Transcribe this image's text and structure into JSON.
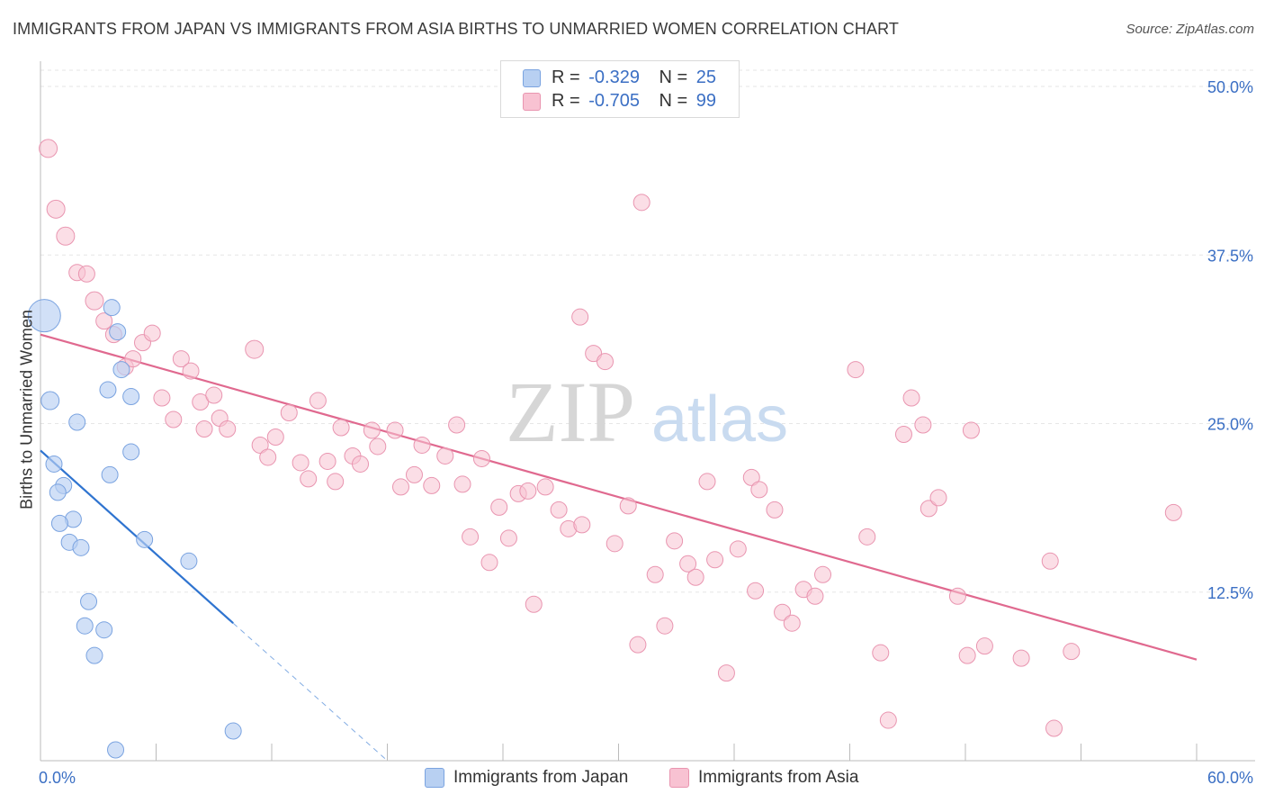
{
  "header": {
    "title": "IMMIGRANTS FROM JAPAN VS IMMIGRANTS FROM ASIA BIRTHS TO UNMARRIED WOMEN CORRELATION CHART",
    "source": "Source: ZipAtlas.com"
  },
  "watermark": {
    "zip": "ZIP",
    "atlas": "atlas"
  },
  "legend": {
    "japan": {
      "r_label": "R =",
      "r_value": "-0.329",
      "n_label": "N =",
      "n_value": "25"
    },
    "asia": {
      "r_label": "R =",
      "r_value": "-0.705",
      "n_label": "N =",
      "n_value": "99"
    }
  },
  "colors": {
    "japan_fill": "#b8d0f2",
    "japan_stroke": "#7aa3e0",
    "japan_line": "#2f74d0",
    "asia_fill": "#f8c2d2",
    "asia_stroke": "#e995b0",
    "asia_line": "#e0698f",
    "tick_label": "#3b6fc4",
    "grid": "#e6e6e6"
  },
  "chart_data": {
    "type": "scatter",
    "title": "IMMIGRANTS FROM JAPAN VS IMMIGRANTS FROM ASIA BIRTHS TO UNMARRIED WOMEN CORRELATION CHART",
    "xlabel": "",
    "ylabel": "Births to Unmarried Women",
    "xlim": [
      0,
      60
    ],
    "ylim": [
      0,
      50
    ],
    "x_tick_labels": [
      "0.0%",
      "60.0%"
    ],
    "y_ticks": [
      12.5,
      25.0,
      37.5,
      50.0
    ],
    "y_tick_labels": [
      "12.5%",
      "25.0%",
      "37.5%",
      "50.0%"
    ],
    "grid": true,
    "legend_position": "top-center",
    "series": [
      {
        "name": "Immigrants from Japan",
        "r": -0.329,
        "n": 25,
        "points": [
          [
            0.2,
            33.0,
            18
          ],
          [
            0.5,
            26.7,
            10
          ],
          [
            1.9,
            25.1,
            9
          ],
          [
            0.7,
            22.0,
            9
          ],
          [
            1.2,
            20.4,
            9
          ],
          [
            0.9,
            19.9,
            9
          ],
          [
            3.6,
            21.2,
            9
          ],
          [
            1.7,
            17.9,
            9
          ],
          [
            1.0,
            17.6,
            9
          ],
          [
            1.5,
            16.2,
            9
          ],
          [
            2.1,
            15.8,
            9
          ],
          [
            3.7,
            33.6,
            9
          ],
          [
            4.0,
            31.8,
            9
          ],
          [
            4.2,
            29.0,
            9
          ],
          [
            3.5,
            27.5,
            9
          ],
          [
            4.7,
            27.0,
            9
          ],
          [
            4.7,
            22.9,
            9
          ],
          [
            5.4,
            16.4,
            9
          ],
          [
            7.7,
            14.8,
            9
          ],
          [
            2.5,
            11.8,
            9
          ],
          [
            2.3,
            10.0,
            9
          ],
          [
            3.3,
            9.7,
            9
          ],
          [
            2.8,
            7.8,
            9
          ],
          [
            10.0,
            2.2,
            9
          ],
          [
            3.9,
            0.8,
            9
          ]
        ],
        "trend": {
          "x0": 0,
          "y0": 23.0,
          "x1": 10.0,
          "y1": 10.2,
          "dash_to_x": 18.0,
          "dash_to_y": 0.0
        }
      },
      {
        "name": "Immigrants from Asia",
        "r": -0.705,
        "n": 99,
        "points": [
          [
            0.4,
            45.4,
            10
          ],
          [
            0.8,
            40.9,
            10
          ],
          [
            1.3,
            38.9,
            10
          ],
          [
            1.9,
            36.2,
            9
          ],
          [
            2.4,
            36.1,
            9
          ],
          [
            2.8,
            34.1,
            10
          ],
          [
            3.3,
            32.6,
            9
          ],
          [
            3.8,
            31.6,
            9
          ],
          [
            5.3,
            31.0,
            9
          ],
          [
            5.8,
            31.7,
            9
          ],
          [
            4.4,
            29.2,
            9
          ],
          [
            4.8,
            29.8,
            9
          ],
          [
            7.3,
            29.8,
            9
          ],
          [
            7.8,
            28.9,
            9
          ],
          [
            11.1,
            30.5,
            10
          ],
          [
            6.3,
            26.9,
            9
          ],
          [
            6.9,
            25.3,
            9
          ],
          [
            8.3,
            26.6,
            9
          ],
          [
            8.5,
            24.6,
            9
          ],
          [
            9.0,
            27.1,
            9
          ],
          [
            9.3,
            25.4,
            9
          ],
          [
            9.7,
            24.6,
            9
          ],
          [
            11.4,
            23.4,
            9
          ],
          [
            11.8,
            22.5,
            9
          ],
          [
            12.2,
            24.0,
            9
          ],
          [
            12.9,
            25.8,
            9
          ],
          [
            13.5,
            22.1,
            9
          ],
          [
            13.9,
            20.9,
            9
          ],
          [
            14.4,
            26.7,
            9
          ],
          [
            14.9,
            22.2,
            9
          ],
          [
            15.3,
            20.7,
            9
          ],
          [
            15.6,
            24.7,
            9
          ],
          [
            16.2,
            22.6,
            9
          ],
          [
            16.6,
            22.0,
            9
          ],
          [
            17.2,
            24.5,
            9
          ],
          [
            17.5,
            23.3,
            9
          ],
          [
            18.4,
            24.5,
            9
          ],
          [
            18.7,
            20.3,
            9
          ],
          [
            19.4,
            21.2,
            9
          ],
          [
            19.8,
            23.4,
            9
          ],
          [
            20.3,
            20.4,
            9
          ],
          [
            21.0,
            22.6,
            9
          ],
          [
            21.6,
            24.9,
            9
          ],
          [
            21.9,
            20.5,
            9
          ],
          [
            22.3,
            16.6,
            9
          ],
          [
            22.9,
            22.4,
            9
          ],
          [
            23.3,
            14.7,
            9
          ],
          [
            23.8,
            18.8,
            9
          ],
          [
            24.3,
            16.5,
            9
          ],
          [
            24.8,
            19.8,
            9
          ],
          [
            25.3,
            20.0,
            9
          ],
          [
            25.6,
            11.6,
            9
          ],
          [
            26.2,
            20.3,
            9
          ],
          [
            26.9,
            18.6,
            9
          ],
          [
            27.4,
            17.2,
            9
          ],
          [
            28.1,
            17.5,
            9
          ],
          [
            28.0,
            32.9,
            9
          ],
          [
            28.7,
            30.2,
            9
          ],
          [
            29.3,
            29.6,
            9
          ],
          [
            29.8,
            16.1,
            9
          ],
          [
            30.5,
            18.9,
            9
          ],
          [
            31.0,
            8.6,
            9
          ],
          [
            31.2,
            41.4,
            9
          ],
          [
            31.9,
            13.8,
            9
          ],
          [
            32.4,
            10.0,
            9
          ],
          [
            32.9,
            16.3,
            9
          ],
          [
            33.6,
            14.6,
            9
          ],
          [
            34.0,
            13.6,
            9
          ],
          [
            34.6,
            20.7,
            9
          ],
          [
            35.0,
            14.9,
            9
          ],
          [
            35.6,
            6.5,
            9
          ],
          [
            36.2,
            15.7,
            9
          ],
          [
            36.9,
            21.0,
            9
          ],
          [
            37.1,
            12.6,
            9
          ],
          [
            37.3,
            20.1,
            9
          ],
          [
            38.1,
            18.6,
            9
          ],
          [
            38.5,
            11.0,
            9
          ],
          [
            39.0,
            10.2,
            9
          ],
          [
            39.6,
            12.7,
            9
          ],
          [
            40.2,
            12.2,
            9
          ],
          [
            40.6,
            13.8,
            9
          ],
          [
            42.3,
            29.0,
            9
          ],
          [
            42.9,
            16.6,
            9
          ],
          [
            43.6,
            8.0,
            9
          ],
          [
            44.0,
            3.0,
            9
          ],
          [
            44.8,
            24.2,
            9
          ],
          [
            45.2,
            26.9,
            9
          ],
          [
            45.8,
            24.9,
            9
          ],
          [
            46.1,
            18.7,
            9
          ],
          [
            46.6,
            19.5,
            9
          ],
          [
            47.6,
            12.2,
            9
          ],
          [
            48.1,
            7.8,
            9
          ],
          [
            48.3,
            24.5,
            9
          ],
          [
            49.0,
            8.5,
            9
          ],
          [
            50.9,
            7.6,
            9
          ],
          [
            52.4,
            14.8,
            9
          ],
          [
            52.6,
            2.4,
            9
          ],
          [
            53.5,
            8.1,
            9
          ],
          [
            58.8,
            18.4,
            9
          ]
        ],
        "trend": {
          "x0": 0,
          "y0": 31.6,
          "x1": 60.0,
          "y1": 7.5
        }
      }
    ]
  },
  "bottom_legend": {
    "japan_label": "Immigrants from Japan",
    "asia_label": "Immigrants from Asia"
  }
}
